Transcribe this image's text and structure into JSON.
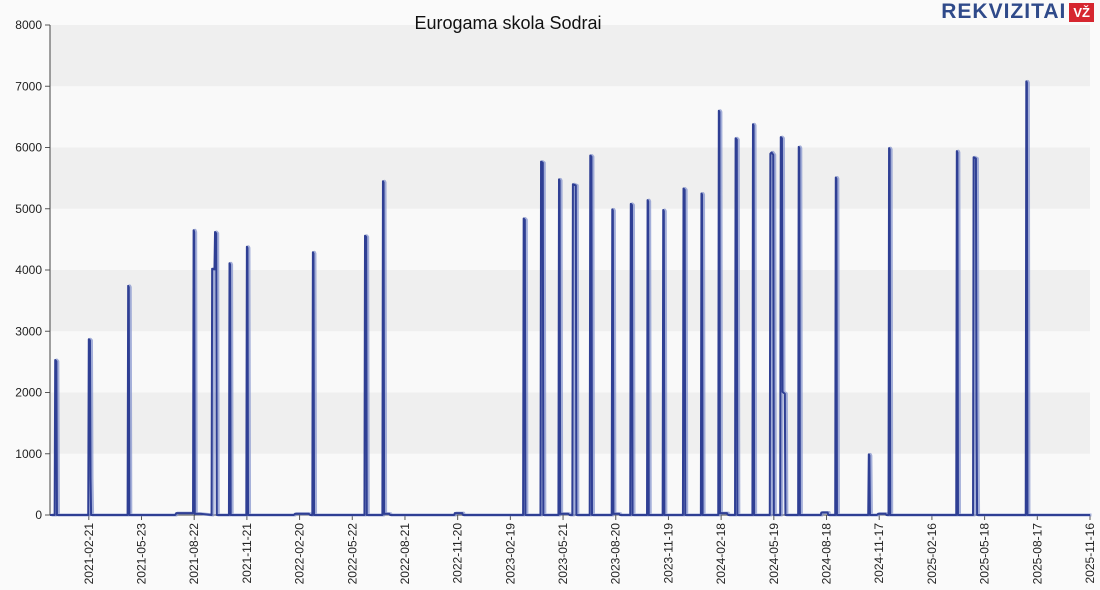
{
  "logo": {
    "text": "REKVIZITAI",
    "badge": "VŽ"
  },
  "chart_data": {
    "type": "line",
    "title": "Eurogama skola Sodrai",
    "xlabel": "",
    "ylabel": "",
    "ylim": [
      0,
      8000
    ],
    "y_ticks": [
      0,
      1000,
      2000,
      3000,
      4000,
      5000,
      6000,
      7000,
      8000
    ],
    "x_range": [
      "2020-12-16",
      "2025-11-16"
    ],
    "x_tick_labels": [
      "2021-02-21",
      "2021-05-23",
      "2021-08-22",
      "2021-11-21",
      "2022-02-20",
      "2022-05-22",
      "2022-08-21",
      "2022-11-20",
      "2023-02-19",
      "2023-05-21",
      "2023-08-20",
      "2023-11-19",
      "2024-02-18",
      "2024-05-19",
      "2024-08-18",
      "2024-11-17",
      "2025-02-16",
      "2025-05-18",
      "2025-08-17",
      "2025-11-16"
    ],
    "grid": true,
    "series": [
      {
        "color": "#2f3f94",
        "points": [
          [
            "2020-12-16",
            0
          ],
          [
            "2020-12-24",
            0
          ],
          [
            "2020-12-25",
            2530
          ],
          [
            "2020-12-27",
            2510
          ],
          [
            "2020-12-28",
            0
          ],
          [
            "2021-02-20",
            0
          ],
          [
            "2021-02-21",
            2870
          ],
          [
            "2021-02-23",
            2850
          ],
          [
            "2021-02-24",
            600
          ],
          [
            "2021-02-25",
            0
          ],
          [
            "2021-04-29",
            0
          ],
          [
            "2021-04-30",
            3740
          ],
          [
            "2021-05-01",
            3720
          ],
          [
            "2021-05-02",
            0
          ],
          [
            "2021-07-20",
            0
          ],
          [
            "2021-07-22",
            30
          ],
          [
            "2021-08-20",
            30
          ],
          [
            "2021-08-21",
            4650
          ],
          [
            "2021-08-22",
            4620
          ],
          [
            "2021-08-23",
            20
          ],
          [
            "2021-09-01",
            20
          ],
          [
            "2021-09-21",
            0
          ],
          [
            "2021-09-22",
            4020
          ],
          [
            "2021-09-26",
            4010
          ],
          [
            "2021-09-27",
            4620
          ],
          [
            "2021-09-29",
            4600
          ],
          [
            "2021-09-30",
            0
          ],
          [
            "2021-10-21",
            0
          ],
          [
            "2021-10-22",
            4110
          ],
          [
            "2021-10-23",
            4090
          ],
          [
            "2021-10-24",
            0
          ],
          [
            "2021-11-20",
            0
          ],
          [
            "2021-11-21",
            4380
          ],
          [
            "2021-11-22",
            4360
          ],
          [
            "2021-11-23",
            0
          ],
          [
            "2022-02-10",
            0
          ],
          [
            "2022-02-12",
            20
          ],
          [
            "2022-03-08",
            20
          ],
          [
            "2022-03-10",
            0
          ],
          [
            "2022-03-14",
            0
          ],
          [
            "2022-03-15",
            4290
          ],
          [
            "2022-03-16",
            4270
          ],
          [
            "2022-03-17",
            0
          ],
          [
            "2022-06-12",
            0
          ],
          [
            "2022-06-13",
            4560
          ],
          [
            "2022-06-15",
            4540
          ],
          [
            "2022-06-16",
            0
          ],
          [
            "2022-07-13",
            0
          ],
          [
            "2022-07-14",
            5450
          ],
          [
            "2022-07-15",
            5430
          ],
          [
            "2022-07-16",
            20
          ],
          [
            "2022-07-25",
            20
          ],
          [
            "2022-07-26",
            0
          ],
          [
            "2022-11-14",
            0
          ],
          [
            "2022-11-15",
            30
          ],
          [
            "2022-11-28",
            30
          ],
          [
            "2022-11-29",
            0
          ],
          [
            "2023-03-13",
            0
          ],
          [
            "2023-03-14",
            4840
          ],
          [
            "2023-03-16",
            4820
          ],
          [
            "2023-03-17",
            0
          ],
          [
            "2023-04-12",
            0
          ],
          [
            "2023-04-13",
            5770
          ],
          [
            "2023-04-16",
            5750
          ],
          [
            "2023-04-17",
            0
          ],
          [
            "2023-05-13",
            0
          ],
          [
            "2023-05-14",
            5480
          ],
          [
            "2023-05-15",
            5460
          ],
          [
            "2023-05-16",
            20
          ],
          [
            "2023-05-30",
            20
          ],
          [
            "2023-06-01",
            0
          ],
          [
            "2023-06-06",
            0
          ],
          [
            "2023-06-07",
            5400
          ],
          [
            "2023-06-12",
            5380
          ],
          [
            "2023-06-13",
            0
          ],
          [
            "2023-07-06",
            0
          ],
          [
            "2023-07-07",
            5870
          ],
          [
            "2023-07-09",
            5850
          ],
          [
            "2023-07-10",
            0
          ],
          [
            "2023-08-13",
            0
          ],
          [
            "2023-08-14",
            4990
          ],
          [
            "2023-08-15",
            4970
          ],
          [
            "2023-08-16",
            20
          ],
          [
            "2023-08-26",
            20
          ],
          [
            "2023-08-27",
            0
          ],
          [
            "2023-09-14",
            0
          ],
          [
            "2023-09-15",
            5080
          ],
          [
            "2023-09-17",
            5060
          ],
          [
            "2023-09-18",
            0
          ],
          [
            "2023-10-13",
            0
          ],
          [
            "2023-10-14",
            5140
          ],
          [
            "2023-10-15",
            5120
          ],
          [
            "2023-10-16",
            0
          ],
          [
            "2023-11-09",
            0
          ],
          [
            "2023-11-10",
            4980
          ],
          [
            "2023-11-11",
            4960
          ],
          [
            "2023-11-12",
            0
          ],
          [
            "2023-12-14",
            0
          ],
          [
            "2023-12-15",
            5330
          ],
          [
            "2023-12-17",
            5310
          ],
          [
            "2023-12-18",
            0
          ],
          [
            "2024-01-14",
            0
          ],
          [
            "2024-01-15",
            5250
          ],
          [
            "2024-01-16",
            5230
          ],
          [
            "2024-01-17",
            0
          ],
          [
            "2024-02-13",
            0
          ],
          [
            "2024-02-14",
            6600
          ],
          [
            "2024-02-15",
            6580
          ],
          [
            "2024-02-16",
            30
          ],
          [
            "2024-02-28",
            30
          ],
          [
            "2024-03-01",
            0
          ],
          [
            "2024-03-13",
            0
          ],
          [
            "2024-03-14",
            6150
          ],
          [
            "2024-03-16",
            6130
          ],
          [
            "2024-03-17",
            0
          ],
          [
            "2024-04-12",
            0
          ],
          [
            "2024-04-13",
            6380
          ],
          [
            "2024-04-14",
            6360
          ],
          [
            "2024-04-15",
            0
          ],
          [
            "2024-05-12",
            0
          ],
          [
            "2024-05-13",
            5900
          ],
          [
            "2024-05-15",
            5920
          ],
          [
            "2024-05-18",
            5880
          ],
          [
            "2024-05-19",
            0
          ],
          [
            "2024-05-30",
            0
          ],
          [
            "2024-05-31",
            6170
          ],
          [
            "2024-06-02",
            6150
          ],
          [
            "2024-06-03",
            2010
          ],
          [
            "2024-06-07",
            1980
          ],
          [
            "2024-06-08",
            0
          ],
          [
            "2024-06-30",
            0
          ],
          [
            "2024-07-01",
            6010
          ],
          [
            "2024-07-02",
            5990
          ],
          [
            "2024-07-03",
            0
          ],
          [
            "2024-08-08",
            0
          ],
          [
            "2024-08-09",
            40
          ],
          [
            "2024-08-20",
            40
          ],
          [
            "2024-08-21",
            0
          ],
          [
            "2024-09-02",
            0
          ],
          [
            "2024-09-03",
            5510
          ],
          [
            "2024-09-04",
            5490
          ],
          [
            "2024-09-05",
            0
          ],
          [
            "2024-10-29",
            0
          ],
          [
            "2024-10-30",
            990
          ],
          [
            "2024-10-31",
            970
          ],
          [
            "2024-11-01",
            0
          ],
          [
            "2024-11-13",
            0
          ],
          [
            "2024-11-15",
            20
          ],
          [
            "2024-11-28",
            20
          ],
          [
            "2024-11-29",
            0
          ],
          [
            "2024-12-03",
            0
          ],
          [
            "2024-12-04",
            5990
          ],
          [
            "2024-12-05",
            5970
          ],
          [
            "2024-12-06",
            0
          ],
          [
            "2025-03-30",
            0
          ],
          [
            "2025-03-31",
            5940
          ],
          [
            "2025-04-01",
            5920
          ],
          [
            "2025-04-02",
            0
          ],
          [
            "2025-04-28",
            0
          ],
          [
            "2025-04-29",
            5840
          ],
          [
            "2025-05-03",
            5820
          ],
          [
            "2025-05-04",
            1800
          ],
          [
            "2025-05-05",
            0
          ],
          [
            "2025-07-28",
            0
          ],
          [
            "2025-07-29",
            7080
          ],
          [
            "2025-07-30",
            7060
          ],
          [
            "2025-07-31",
            0
          ],
          [
            "2025-11-16",
            0
          ]
        ]
      }
    ]
  }
}
